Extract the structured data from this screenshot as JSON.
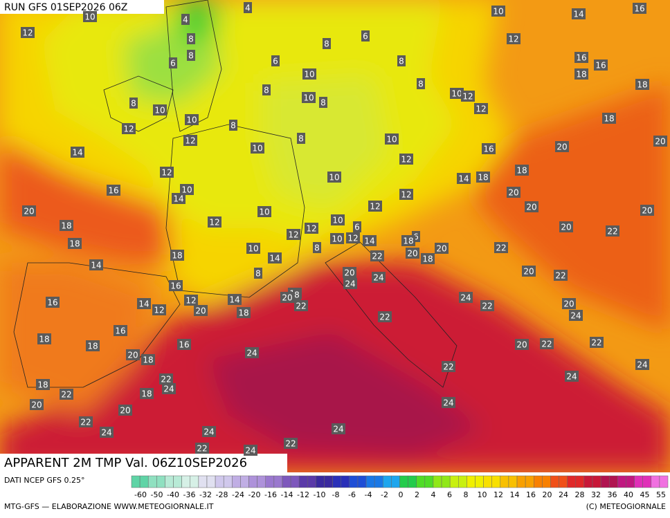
{
  "header": {
    "run": "RUN GFS 01SEP2026 06Z"
  },
  "title": "APPARENT 2M TMP Val. 06Z10SEP2026",
  "footer": {
    "source": "DATI NCEP GFS 0.25°",
    "credit": "MTG-GFS — ELABORAZIONE WWW.METEOGIORNALE.IT",
    "copyright": "(C) METEOGIORNALE"
  },
  "legend": {
    "labels": [
      -60,
      -50,
      -40,
      -36,
      -32,
      -28,
      -24,
      -20,
      -16,
      -14,
      -12,
      -10,
      -8,
      -6,
      -4,
      -2,
      0,
      2,
      4,
      6,
      8,
      10,
      12,
      14,
      16,
      20,
      24,
      28,
      32,
      36,
      40,
      45,
      55
    ],
    "colors": [
      "#5fd4a6",
      "#8fe0c0",
      "#b8ead6",
      "#d6f0e6",
      "#e0e0f0",
      "#d0c8ec",
      "#c0aee4",
      "#ae92da",
      "#9a78ce",
      "#7e58bc",
      "#5a3aa8",
      "#3a2a9e",
      "#2a30b8",
      "#1e4ed6",
      "#1a78e6",
      "#1ea6ee",
      "#24cc4c",
      "#50dc28",
      "#90e818",
      "#c8f010",
      "#f0f000",
      "#f8e000",
      "#f8c000",
      "#f8a000",
      "#f88000",
      "#f05018",
      "#e02828",
      "#c81838",
      "#b01450",
      "#c01880",
      "#e030b8",
      "#f070e0"
    ]
  },
  "map": {
    "labels": [
      12,
      10,
      4,
      4,
      10,
      14,
      16,
      8,
      6,
      8,
      12,
      6,
      8,
      6,
      8,
      16,
      16,
      10,
      18,
      8,
      10,
      8,
      8,
      10,
      12,
      18,
      8,
      10,
      12,
      10,
      8,
      12,
      18,
      12,
      8,
      10,
      14,
      10,
      16,
      20,
      20,
      12,
      12,
      18,
      10,
      14,
      18,
      10,
      16,
      14,
      20,
      12,
      12,
      20,
      20,
      20,
      10,
      12,
      18,
      10,
      20,
      22,
      12,
      12,
      10,
      12,
      6,
      14,
      6,
      18,
      18,
      20,
      22,
      10,
      8,
      18,
      20,
      22,
      14,
      18,
      14,
      8,
      20,
      22,
      20,
      24,
      24,
      16,
      18,
      20,
      8,
      16,
      14,
      12,
      12,
      14,
      24,
      22,
      20,
      22,
      20,
      18,
      24,
      22,
      16,
      18,
      18,
      16,
      20,
      22,
      22,
      20,
      18,
      24,
      22,
      24,
      22,
      24,
      18,
      24,
      22,
      18,
      20,
      24,
      20,
      22,
      24,
      24,
      24,
      22,
      22,
      24
    ]
  }
}
